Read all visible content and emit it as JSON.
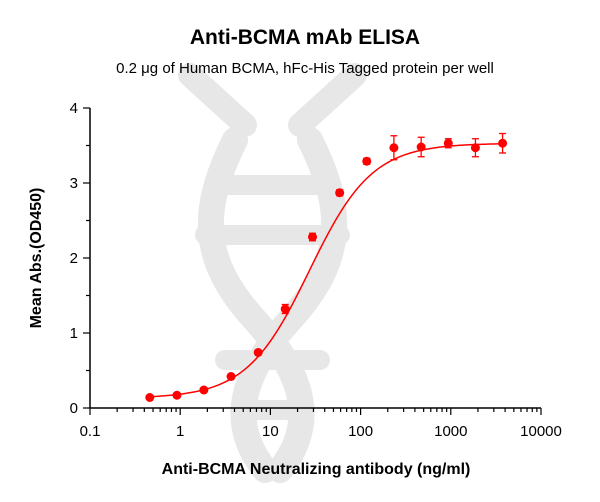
{
  "chart_data": {
    "type": "scatter",
    "title": "Anti-BCMA mAb ELISA",
    "subtitle": "0.2 μg of Human BCMA, hFc-His Tagged protein per well",
    "xlabel": "Anti-BCMA Neutralizing antibody (ng/ml)",
    "ylabel": "Mean Abs.(OD450)",
    "x_scale": "log",
    "xlim": [
      0.1,
      10000
    ],
    "ylim": [
      0,
      4
    ],
    "x_ticks": [
      0.1,
      1,
      10,
      100,
      1000,
      10000
    ],
    "x_tick_labels": [
      "0.1",
      "1",
      "10",
      "100",
      "1000",
      "10000"
    ],
    "y_ticks": [
      0,
      1,
      2,
      3,
      4
    ],
    "y_tick_labels": [
      "0",
      "1",
      "2",
      "3",
      "4"
    ],
    "grid": false,
    "series_color": "#ff0000",
    "series": [
      {
        "x": [
          0.46,
          0.92,
          1.83,
          3.66,
          7.32,
          14.6,
          29.3,
          58.6,
          117,
          234,
          469,
          938,
          1875,
          3750
        ],
        "y": [
          0.14,
          0.17,
          0.24,
          0.42,
          0.74,
          1.32,
          2.28,
          2.87,
          3.29,
          3.47,
          3.48,
          3.53,
          3.47,
          3.53
        ],
        "error": [
          0.02,
          0.02,
          0.03,
          0.03,
          0.03,
          0.06,
          0.05,
          0.04,
          0.04,
          0.16,
          0.13,
          0.06,
          0.12,
          0.13
        ],
        "fit": {
          "bottom": 0.13,
          "top": 3.53,
          "ec50": 27,
          "hill": 1.25
        }
      }
    ]
  }
}
